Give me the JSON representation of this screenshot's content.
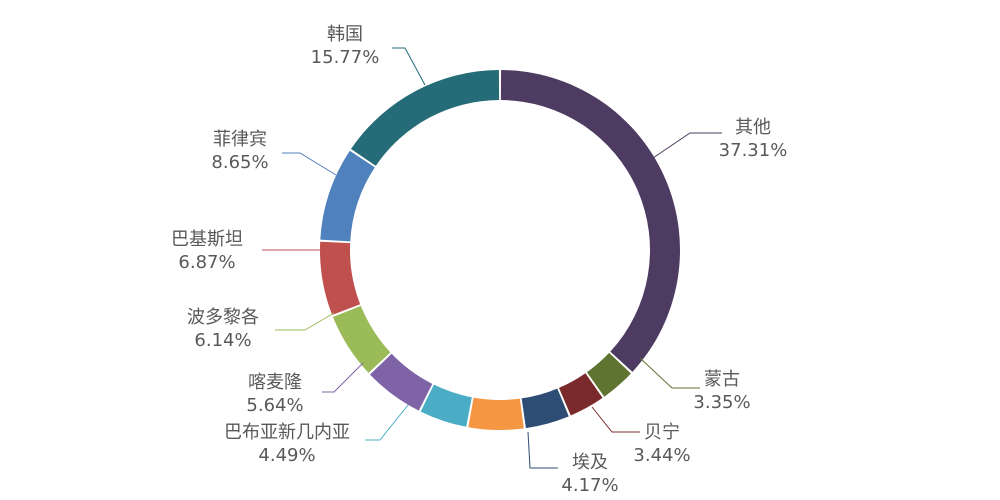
{
  "chart_data": {
    "type": "pie",
    "donut": true,
    "slices": [
      {
        "label": "其他",
        "percent_text": "37.31%",
        "value": 37.31,
        "color": "#4e3b62"
      },
      {
        "label": "蒙古",
        "percent_text": "3.35%",
        "value": 3.35,
        "color": "#5e7430"
      },
      {
        "label": "贝宁",
        "percent_text": "3.44%",
        "value": 3.44,
        "color": "#7a2a2a"
      },
      {
        "label": "埃及",
        "percent_text": "4.17%",
        "value": 4.17,
        "color": "#2d4d74"
      },
      {
        "label": "",
        "percent_text": "",
        "value": 5.17,
        "color": "#f59642"
      },
      {
        "label": "巴布亚新几内亚",
        "percent_text": "4.49%",
        "value": 4.49,
        "color": "#4bacc6"
      },
      {
        "label": "喀麦隆",
        "percent_text": "5.64%",
        "value": 5.64,
        "color": "#7f63a7"
      },
      {
        "label": "波多黎各",
        "percent_text": "6.14%",
        "value": 6.14,
        "color": "#9bbb59"
      },
      {
        "label": "巴基斯坦",
        "percent_text": "6.87%",
        "value": 6.87,
        "color": "#c0504d"
      },
      {
        "label": "菲律宾",
        "percent_text": "8.65%",
        "value": 8.65,
        "color": "#4f81bd"
      },
      {
        "label": "韩国",
        "percent_text": "15.77%",
        "value": 15.77,
        "color": "#256b78"
      }
    ]
  }
}
